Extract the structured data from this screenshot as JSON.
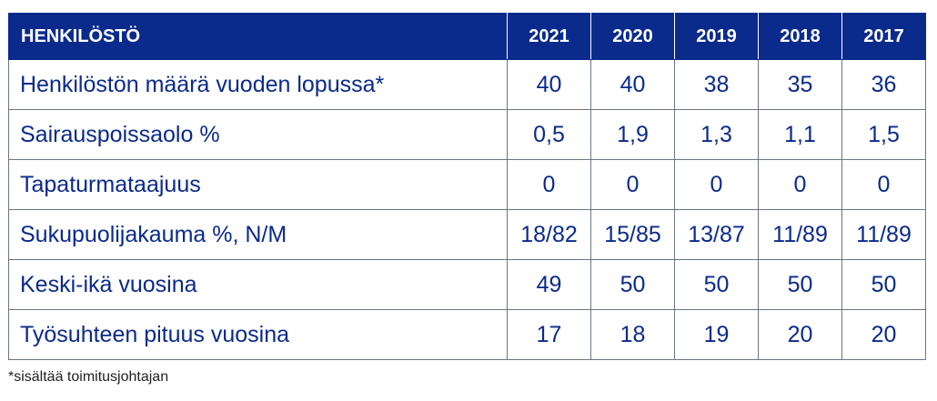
{
  "table": {
    "title": "HENKILÖSTÖ",
    "years": [
      "2021",
      "2020",
      "2019",
      "2018",
      "2017"
    ],
    "rows": [
      {
        "label": "Henkilöstön määrä vuoden lopussa*",
        "values": [
          "40",
          "40",
          "38",
          "35",
          "36"
        ]
      },
      {
        "label": "Sairauspoissaolo %",
        "values": [
          "0,5",
          "1,9",
          "1,3",
          "1,1",
          "1,5"
        ]
      },
      {
        "label": "Tapaturmataajuus",
        "values": [
          "0",
          "0",
          "0",
          "0",
          "0"
        ]
      },
      {
        "label": "Sukupuolijakauma %, N/M",
        "values": [
          "18/82",
          "15/85",
          "13/87",
          "11/89",
          "11/89"
        ]
      },
      {
        "label": "Keski-ikä vuosina",
        "values": [
          "49",
          "50",
          "50",
          "50",
          "50"
        ]
      },
      {
        "label": "Työsuhteen pituus vuosina",
        "values": [
          "17",
          "18",
          "19",
          "20",
          "20"
        ]
      }
    ]
  },
  "footnote": "*sisältää toimitusjohtajan",
  "colors": {
    "header_bg": "#0a2a8c",
    "text": "#0a2a8c"
  }
}
